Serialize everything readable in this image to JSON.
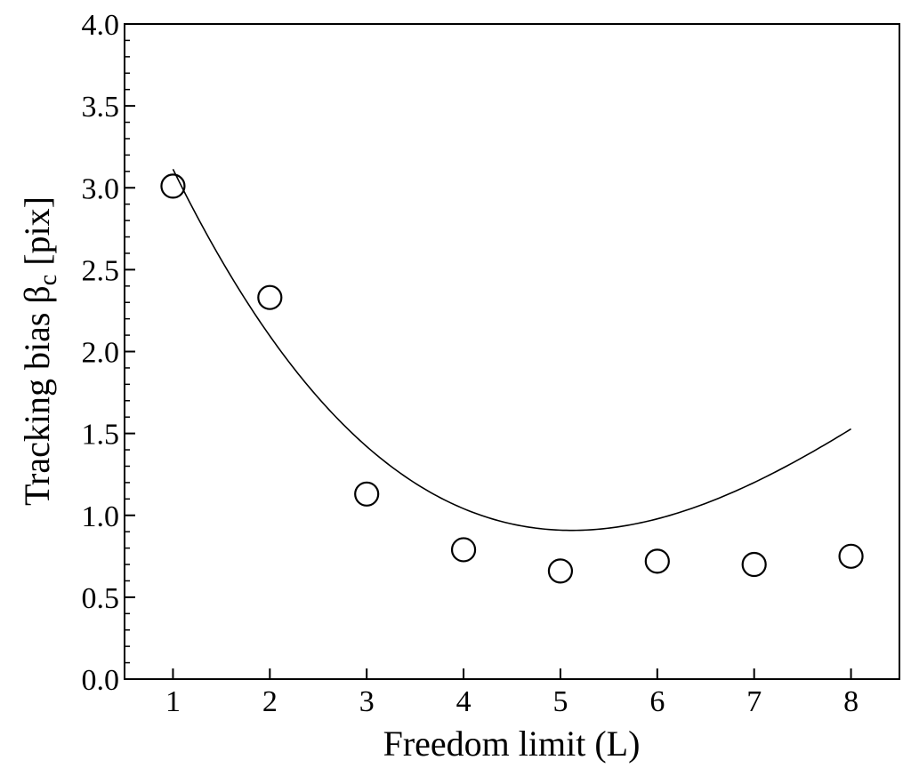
{
  "chart_data": {
    "type": "scatter",
    "xlabel": "Freedom limit (L)",
    "ylabel": {
      "main": "Tracking bias β",
      "subscript": "c",
      "unit": " [pix]"
    },
    "xlim": [
      0.5,
      8.5
    ],
    "ylim": [
      0.0,
      4.0
    ],
    "x_ticks": [
      1,
      2,
      3,
      4,
      5,
      6,
      7,
      8
    ],
    "x_tick_labels": [
      "1",
      "2",
      "3",
      "4",
      "5",
      "6",
      "7",
      "8"
    ],
    "y_ticks": [
      0.0,
      0.5,
      1.0,
      1.5,
      2.0,
      2.5,
      3.0,
      3.5,
      4.0
    ],
    "y_tick_labels": [
      "0.0",
      "0.5",
      "1.0",
      "1.5",
      "2.0",
      "2.5",
      "3.0",
      "3.5",
      "4.0"
    ],
    "y_minor_step": 0.1,
    "grid": false,
    "series": [
      {
        "marker": "open-circle",
        "x": [
          1,
          2,
          3,
          4,
          5,
          6,
          7,
          8
        ],
        "y": [
          3.01,
          2.33,
          1.13,
          0.79,
          0.66,
          0.72,
          0.7,
          0.75
        ]
      }
    ],
    "fit_curve": {
      "style": "line",
      "x_range": [
        1,
        8
      ],
      "cubic_coeffs": [
        4.523,
        -1.6207,
        0.2193,
        -0.00794
      ]
    },
    "colors": {
      "marker": "#000000",
      "line": "#000000",
      "background": "#ffffff"
    }
  }
}
